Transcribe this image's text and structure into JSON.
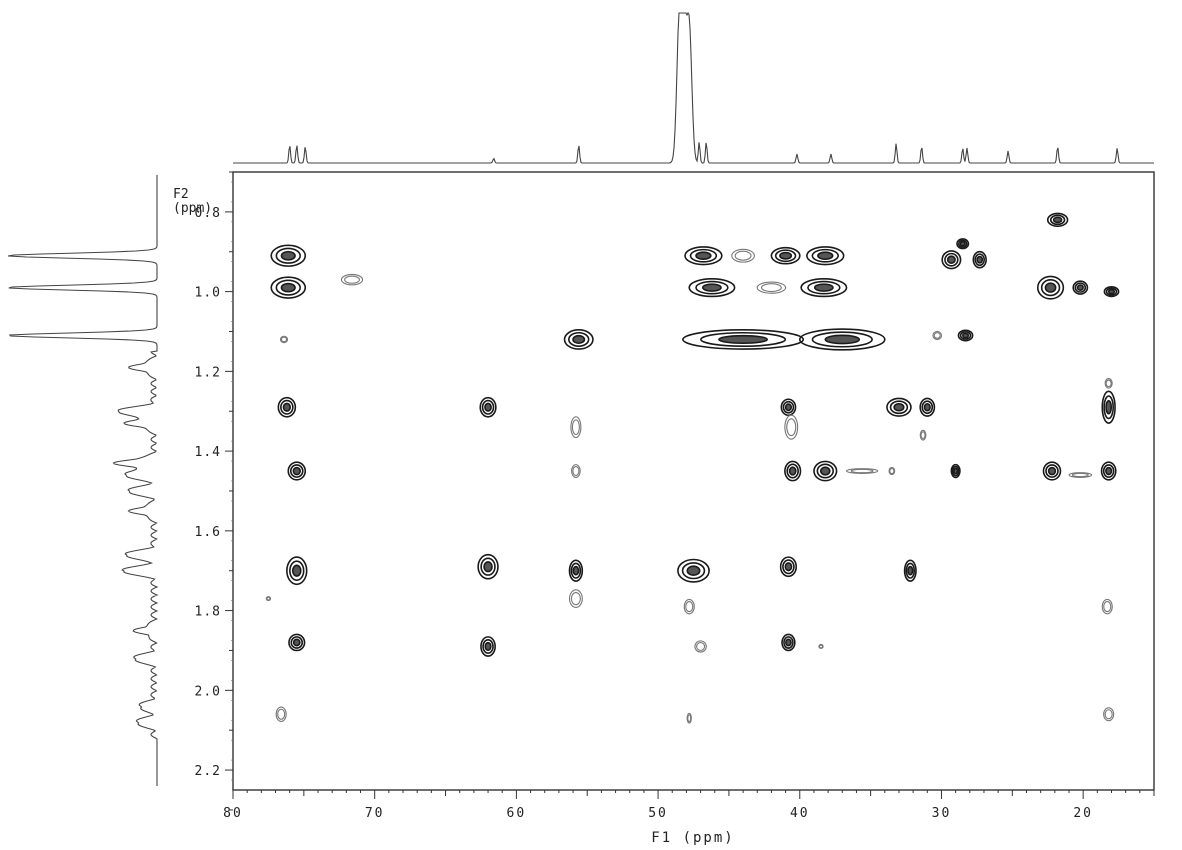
{
  "chart_data": {
    "type": "heatmap",
    "subtype": "2D NMR contour plot (HMBC-style, 13C x 1H)",
    "xlabel": "F1 (ppm)",
    "ylabel": "F2\n(ppm)",
    "xlim": [
      80,
      15
    ],
    "ylim": [
      0.7,
      2.25
    ],
    "xticks": [
      80,
      70,
      60,
      50,
      40,
      30,
      20
    ],
    "xtick_labels": [
      "80",
      "70",
      "60",
      "50",
      "40",
      "30",
      "20"
    ],
    "yticks": [
      0.8,
      1.0,
      1.2,
      1.4,
      1.6,
      1.8,
      2.0,
      2.2
    ],
    "ytick_labels": [
      "0.8",
      "1.0",
      "1.2",
      "1.4",
      "1.6",
      "1.8",
      "2.0",
      "2.2"
    ],
    "grid": false,
    "x_axis_reversed": true,
    "y_axis_reversed": true,
    "colors": {
      "contour": "#1a1a1a",
      "weak_contour": "#777777",
      "frame": "#333333"
    },
    "f1_projection_peaks": [
      {
        "ppm": 76.0,
        "height": 0.12
      },
      {
        "ppm": 75.5,
        "height": 0.12
      },
      {
        "ppm": 74.9,
        "height": 0.11
      },
      {
        "ppm": 61.6,
        "height": 0.03
      },
      {
        "ppm": 55.6,
        "height": 0.12
      },
      {
        "ppm": 48.5,
        "height": 0.9
      },
      {
        "ppm": 48.2,
        "height": 0.9
      },
      {
        "ppm": 47.8,
        "height": 0.9
      },
      {
        "ppm": 47.1,
        "height": 0.14
      },
      {
        "ppm": 46.6,
        "height": 0.14
      },
      {
        "ppm": 40.2,
        "height": 0.06
      },
      {
        "ppm": 37.8,
        "height": 0.06
      },
      {
        "ppm": 33.2,
        "height": 0.13
      },
      {
        "ppm": 31.4,
        "height": 0.11
      },
      {
        "ppm": 28.5,
        "height": 0.1
      },
      {
        "ppm": 28.2,
        "height": 0.1
      },
      {
        "ppm": 25.3,
        "height": 0.08
      },
      {
        "ppm": 21.8,
        "height": 0.11
      },
      {
        "ppm": 17.6,
        "height": 0.1
      }
    ],
    "f2_projection_peaks": [
      {
        "ppm": 0.91,
        "height": 1.0
      },
      {
        "ppm": 0.99,
        "height": 1.0
      },
      {
        "ppm": 1.11,
        "height": 1.0
      },
      {
        "ppm": 1.19,
        "height": 0.15
      },
      {
        "ppm": 1.3,
        "height": 0.25
      },
      {
        "ppm": 1.33,
        "height": 0.18
      },
      {
        "ppm": 1.43,
        "height": 0.25
      },
      {
        "ppm": 1.46,
        "height": 0.2
      },
      {
        "ppm": 1.5,
        "height": 0.18
      },
      {
        "ppm": 1.55,
        "height": 0.15
      },
      {
        "ppm": 1.66,
        "height": 0.2
      },
      {
        "ppm": 1.7,
        "height": 0.22
      },
      {
        "ppm": 1.85,
        "height": 0.12
      },
      {
        "ppm": 1.92,
        "height": 0.14
      },
      {
        "ppm": 2.04,
        "height": 0.1
      },
      {
        "ppm": 2.08,
        "height": 0.12
      }
    ],
    "cross_peaks": [
      {
        "f1": 21.8,
        "f2": 0.82,
        "w": 1.4,
        "h": 0.016,
        "strong": true
      },
      {
        "f1": 76.1,
        "f2": 0.91,
        "w": 2.4,
        "h": 0.026,
        "strong": true
      },
      {
        "f1": 76.1,
        "f2": 0.99,
        "w": 2.4,
        "h": 0.026,
        "strong": true
      },
      {
        "f1": 71.6,
        "f2": 0.97,
        "w": 1.5,
        "h": 0.013,
        "strong": false
      },
      {
        "f1": 76.4,
        "f2": 1.12,
        "w": 0.5,
        "h": 0.008,
        "strong": false
      },
      {
        "f1": 55.6,
        "f2": 1.12,
        "w": 2.0,
        "h": 0.024,
        "strong": true
      },
      {
        "f1": 44.0,
        "f2": 1.12,
        "w": 8.5,
        "h": 0.024,
        "strong": true
      },
      {
        "f1": 37.0,
        "f2": 1.12,
        "w": 6.0,
        "h": 0.026,
        "strong": true
      },
      {
        "f1": 46.8,
        "f2": 0.91,
        "w": 2.6,
        "h": 0.022,
        "strong": true
      },
      {
        "f1": 44.0,
        "f2": 0.91,
        "w": 1.6,
        "h": 0.016,
        "strong": false
      },
      {
        "f1": 41.0,
        "f2": 0.91,
        "w": 2.0,
        "h": 0.02,
        "strong": true
      },
      {
        "f1": 38.2,
        "f2": 0.91,
        "w": 2.6,
        "h": 0.022,
        "strong": true
      },
      {
        "f1": 46.2,
        "f2": 0.99,
        "w": 3.2,
        "h": 0.022,
        "strong": true
      },
      {
        "f1": 42.0,
        "f2": 0.99,
        "w": 2.0,
        "h": 0.014,
        "strong": false
      },
      {
        "f1": 38.3,
        "f2": 0.99,
        "w": 3.2,
        "h": 0.022,
        "strong": true
      },
      {
        "f1": 28.5,
        "f2": 0.88,
        "w": 0.8,
        "h": 0.012,
        "strong": true
      },
      {
        "f1": 29.3,
        "f2": 0.92,
        "w": 1.3,
        "h": 0.022,
        "strong": true
      },
      {
        "f1": 27.3,
        "f2": 0.92,
        "w": 0.9,
        "h": 0.02,
        "strong": true
      },
      {
        "f1": 28.3,
        "f2": 1.11,
        "w": 1.0,
        "h": 0.013,
        "strong": true
      },
      {
        "f1": 30.3,
        "f2": 1.11,
        "w": 0.6,
        "h": 0.01,
        "strong": false
      },
      {
        "f1": 22.3,
        "f2": 0.99,
        "w": 1.8,
        "h": 0.028,
        "strong": true
      },
      {
        "f1": 20.2,
        "f2": 0.99,
        "w": 1.0,
        "h": 0.016,
        "strong": true
      },
      {
        "f1": 18.0,
        "f2": 1.0,
        "w": 1.0,
        "h": 0.012,
        "strong": true
      },
      {
        "f1": 76.2,
        "f2": 1.29,
        "w": 1.2,
        "h": 0.024,
        "strong": true
      },
      {
        "f1": 62.0,
        "f2": 1.29,
        "w": 1.1,
        "h": 0.024,
        "strong": true
      },
      {
        "f1": 40.8,
        "f2": 1.29,
        "w": 1.0,
        "h": 0.02,
        "strong": true
      },
      {
        "f1": 40.6,
        "f2": 1.34,
        "w": 0.9,
        "h": 0.03,
        "strong": false
      },
      {
        "f1": 33.0,
        "f2": 1.29,
        "w": 1.7,
        "h": 0.022,
        "strong": true
      },
      {
        "f1": 31.0,
        "f2": 1.29,
        "w": 1.0,
        "h": 0.022,
        "strong": true
      },
      {
        "f1": 31.3,
        "f2": 1.36,
        "w": 0.4,
        "h": 0.012,
        "strong": false
      },
      {
        "f1": 18.2,
        "f2": 1.23,
        "w": 0.5,
        "h": 0.012,
        "strong": false
      },
      {
        "f1": 18.2,
        "f2": 1.29,
        "w": 0.9,
        "h": 0.04,
        "strong": true
      },
      {
        "f1": 55.8,
        "f2": 1.34,
        "w": 0.7,
        "h": 0.026,
        "strong": false
      },
      {
        "f1": 55.8,
        "f2": 1.45,
        "w": 0.6,
        "h": 0.016,
        "strong": false
      },
      {
        "f1": 75.5,
        "f2": 1.45,
        "w": 1.2,
        "h": 0.022,
        "strong": true
      },
      {
        "f1": 40.5,
        "f2": 1.45,
        "w": 1.1,
        "h": 0.024,
        "strong": true
      },
      {
        "f1": 38.2,
        "f2": 1.45,
        "w": 1.6,
        "h": 0.024,
        "strong": true
      },
      {
        "f1": 35.6,
        "f2": 1.45,
        "w": 2.2,
        "h": 0.006,
        "strong": false
      },
      {
        "f1": 33.5,
        "f2": 1.45,
        "w": 0.4,
        "h": 0.009,
        "strong": false
      },
      {
        "f1": 29.0,
        "f2": 1.45,
        "w": 0.6,
        "h": 0.016,
        "strong": true
      },
      {
        "f1": 22.2,
        "f2": 1.45,
        "w": 1.2,
        "h": 0.022,
        "strong": true
      },
      {
        "f1": 20.2,
        "f2": 1.46,
        "w": 1.6,
        "h": 0.006,
        "strong": false
      },
      {
        "f1": 18.2,
        "f2": 1.45,
        "w": 1.0,
        "h": 0.022,
        "strong": true
      },
      {
        "f1": 75.5,
        "f2": 1.7,
        "w": 1.4,
        "h": 0.034,
        "strong": true
      },
      {
        "f1": 62.0,
        "f2": 1.69,
        "w": 1.4,
        "h": 0.03,
        "strong": true
      },
      {
        "f1": 55.8,
        "f2": 1.7,
        "w": 0.9,
        "h": 0.026,
        "strong": true
      },
      {
        "f1": 55.8,
        "f2": 1.77,
        "w": 0.9,
        "h": 0.022,
        "strong": false
      },
      {
        "f1": 47.5,
        "f2": 1.7,
        "w": 2.2,
        "h": 0.028,
        "strong": true
      },
      {
        "f1": 40.8,
        "f2": 1.69,
        "w": 1.1,
        "h": 0.024,
        "strong": true
      },
      {
        "f1": 32.2,
        "f2": 1.7,
        "w": 0.8,
        "h": 0.026,
        "strong": true
      },
      {
        "f1": 47.8,
        "f2": 1.79,
        "w": 0.7,
        "h": 0.018,
        "strong": false
      },
      {
        "f1": 77.5,
        "f2": 1.77,
        "w": 0.3,
        "h": 0.005,
        "strong": false
      },
      {
        "f1": 18.3,
        "f2": 1.79,
        "w": 0.7,
        "h": 0.018,
        "strong": false
      },
      {
        "f1": 75.5,
        "f2": 1.88,
        "w": 1.1,
        "h": 0.02,
        "strong": true
      },
      {
        "f1": 62.0,
        "f2": 1.89,
        "w": 1.0,
        "h": 0.024,
        "strong": true
      },
      {
        "f1": 47.0,
        "f2": 1.89,
        "w": 0.8,
        "h": 0.014,
        "strong": false
      },
      {
        "f1": 40.8,
        "f2": 1.88,
        "w": 0.9,
        "h": 0.02,
        "strong": true
      },
      {
        "f1": 38.5,
        "f2": 1.89,
        "w": 0.3,
        "h": 0.005,
        "strong": false
      },
      {
        "f1": 76.6,
        "f2": 2.06,
        "w": 0.7,
        "h": 0.018,
        "strong": false
      },
      {
        "f1": 47.8,
        "f2": 2.07,
        "w": 0.3,
        "h": 0.012,
        "strong": false
      },
      {
        "f1": 18.2,
        "f2": 2.06,
        "w": 0.7,
        "h": 0.016,
        "strong": false
      }
    ]
  }
}
